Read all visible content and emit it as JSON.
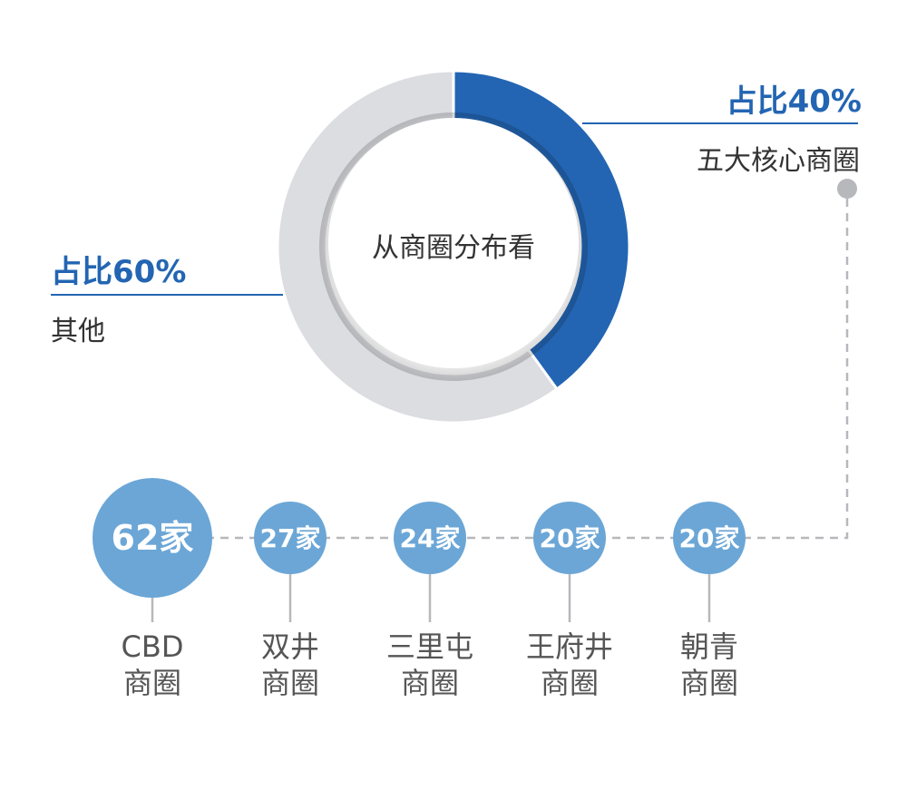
{
  "chart_data": {
    "type": "pie",
    "center_label": "从商圈分布看",
    "slices": [
      {
        "label": "五大核心商圈",
        "value": 40,
        "pct_label": "占比40%",
        "color": "#2365b3"
      },
      {
        "label": "其他",
        "value": 60,
        "pct_label": "占比60%",
        "color": "#dcdde1"
      }
    ],
    "legend_placement": "sides",
    "breakdown": [
      {
        "count_label": "62家",
        "value": 62,
        "name_line1": "CBD",
        "name_line2": "商圈"
      },
      {
        "count_label": "27家",
        "value": 27,
        "name_line1": "双井",
        "name_line2": "商圈"
      },
      {
        "count_label": "24家",
        "value": 24,
        "name_line1": "三里屯",
        "name_line2": "商圈"
      },
      {
        "count_label": "20家",
        "value": 20,
        "name_line1": "王府井",
        "name_line2": "商圈"
      },
      {
        "count_label": "20家",
        "value": 20,
        "name_line1": "朝青",
        "name_line2": "商圈"
      }
    ],
    "bubble_color": "#6ba6d6"
  }
}
